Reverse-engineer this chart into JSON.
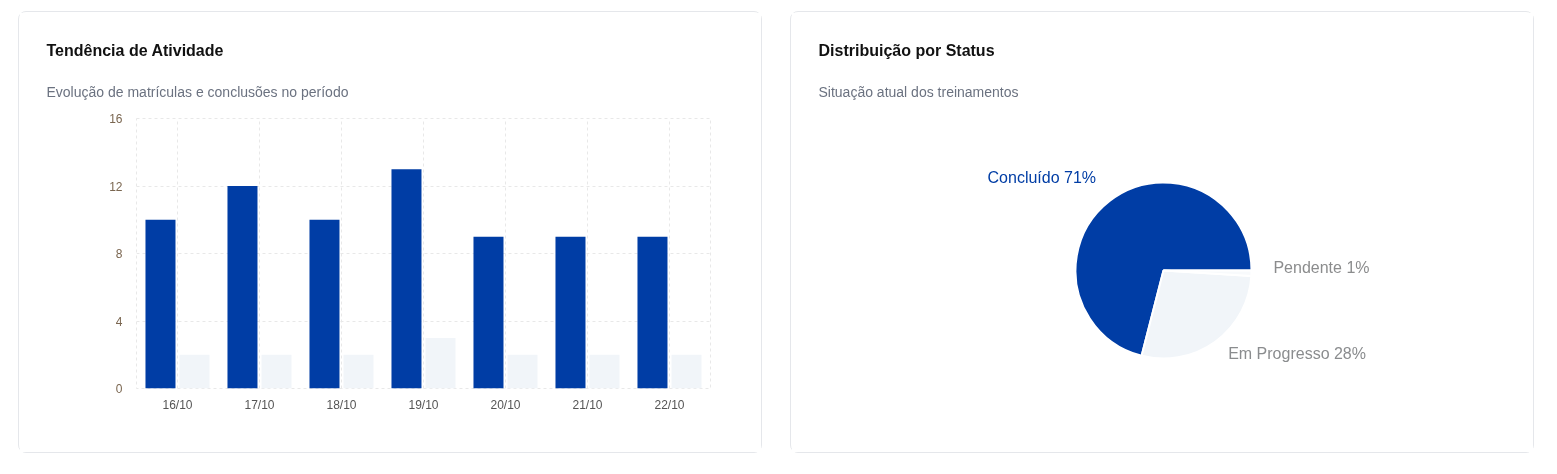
{
  "chart_data": [
    {
      "type": "bar",
      "title": "Tendência de Atividade",
      "subtitle": "Evolução de matrículas e conclusões no período",
      "categories": [
        "16/10",
        "17/10",
        "18/10",
        "19/10",
        "20/10",
        "21/10",
        "22/10"
      ],
      "series": [
        {
          "color": "#003da5",
          "values": [
            10,
            12,
            10,
            13,
            9,
            9,
            9
          ]
        },
        {
          "color": "#f1f5f9",
          "values": [
            2,
            2,
            2,
            3,
            2,
            2,
            2
          ]
        }
      ],
      "ylim": [
        0,
        16
      ],
      "yticks": [
        0,
        4,
        8,
        12,
        16
      ],
      "grid": true
    },
    {
      "type": "pie",
      "title": "Distribuição por Status",
      "subtitle": "Situação atual dos treinamentos",
      "categories": [
        "Concluído",
        "Em Progresso",
        "Pendente"
      ],
      "values": [
        71,
        28,
        1
      ],
      "colors": [
        "#003da5",
        "#f1f5f9",
        "#f8fafc"
      ],
      "value_labels": [
        "71%",
        "28%",
        "1%"
      ]
    }
  ]
}
